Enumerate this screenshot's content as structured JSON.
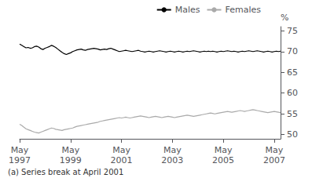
{
  "chart_data": {
    "type": "line",
    "ylabel": "%",
    "footnote": "(a) Series break at April 2001",
    "categories": [
      "May\n1997",
      null,
      null,
      null,
      null,
      null,
      null,
      null,
      null,
      null,
      null,
      null,
      null,
      null,
      null,
      null,
      null,
      null,
      null,
      null,
      null,
      null,
      null,
      null,
      "May\n1999",
      null,
      null,
      null,
      null,
      null,
      null,
      null,
      null,
      null,
      null,
      null,
      null,
      null,
      null,
      null,
      null,
      null,
      null,
      null,
      null,
      null,
      null,
      null,
      "May\n2001",
      null,
      null,
      null,
      null,
      null,
      null,
      null,
      null,
      null,
      null,
      null,
      null,
      null,
      null,
      null,
      null,
      null,
      null,
      null,
      null,
      null,
      null,
      null,
      "May\n2003",
      null,
      null,
      null,
      null,
      null,
      null,
      null,
      null,
      null,
      null,
      null,
      null,
      null,
      null,
      null,
      null,
      null,
      null,
      null,
      null,
      null,
      null,
      null,
      "May\n2005",
      null,
      null,
      null,
      null,
      null,
      null,
      null,
      null,
      null,
      null,
      null,
      null,
      null,
      null,
      null,
      null,
      null,
      null,
      null,
      null,
      null,
      null,
      null,
      "May\n2007",
      null,
      null,
      null
    ],
    "series": [
      {
        "name": "Males",
        "color": "#000000",
        "values": [
          71.8,
          71.5,
          71.2,
          70.9,
          71.0,
          70.8,
          70.9,
          71.2,
          71.3,
          71.1,
          70.7,
          70.5,
          70.8,
          71.0,
          71.2,
          71.5,
          71.3,
          71.0,
          70.6,
          70.2,
          69.8,
          69.5,
          69.3,
          69.5,
          69.7,
          70.0,
          70.2,
          70.4,
          70.5,
          70.6,
          70.4,
          70.3,
          70.5,
          70.6,
          70.7,
          70.8,
          70.7,
          70.6,
          70.4,
          70.5,
          70.6,
          70.5,
          70.7,
          70.8,
          70.6,
          70.4,
          70.2,
          70.0,
          70.1,
          70.2,
          70.3,
          70.2,
          70.1,
          70.0,
          70.1,
          70.2,
          70.3,
          70.1,
          70.0,
          69.9,
          70.0,
          70.1,
          70.0,
          69.9,
          70.0,
          70.1,
          70.2,
          70.1,
          70.0,
          69.9,
          70.0,
          70.1,
          70.0,
          69.9,
          70.0,
          70.1,
          70.0,
          69.9,
          70.0,
          70.1,
          70.0,
          70.1,
          70.2,
          70.1,
          70.0,
          69.9,
          70.0,
          70.1,
          70.0,
          70.1,
          70.0,
          70.1,
          70.0,
          69.9,
          70.0,
          70.1,
          70.0,
          70.1,
          70.2,
          70.1,
          70.0,
          70.1,
          70.0,
          69.9,
          70.0,
          70.1,
          70.0,
          70.1,
          70.2,
          70.1,
          70.0,
          70.1,
          70.2,
          70.1,
          70.0,
          69.9,
          70.0,
          70.1,
          70.0,
          69.9,
          70.0,
          70.1,
          70.0,
          70.1
        ]
      },
      {
        "name": "Females",
        "color": "#aaaaaa",
        "values": [
          52.5,
          52.2,
          51.8,
          51.4,
          51.2,
          51.0,
          50.8,
          50.6,
          50.5,
          50.4,
          50.6,
          50.8,
          51.0,
          51.2,
          51.4,
          51.6,
          51.5,
          51.3,
          51.2,
          51.1,
          51.0,
          51.2,
          51.3,
          51.4,
          51.5,
          51.6,
          51.8,
          52.0,
          52.1,
          52.2,
          52.3,
          52.4,
          52.5,
          52.6,
          52.7,
          52.8,
          52.9,
          53.0,
          53.2,
          53.3,
          53.4,
          53.5,
          53.6,
          53.7,
          53.8,
          53.9,
          54.0,
          54.1,
          54.0,
          54.1,
          54.2,
          54.1,
          54.0,
          54.1,
          54.2,
          54.3,
          54.4,
          54.5,
          54.4,
          54.3,
          54.2,
          54.1,
          54.2,
          54.3,
          54.4,
          54.3,
          54.2,
          54.1,
          54.2,
          54.3,
          54.4,
          54.3,
          54.2,
          54.1,
          54.2,
          54.3,
          54.4,
          54.5,
          54.6,
          54.7,
          54.6,
          54.5,
          54.4,
          54.5,
          54.6,
          54.7,
          54.8,
          54.9,
          55.0,
          55.1,
          55.2,
          55.1,
          55.0,
          55.1,
          55.2,
          55.3,
          55.4,
          55.5,
          55.6,
          55.5,
          55.4,
          55.5,
          55.6,
          55.7,
          55.8,
          55.7,
          55.6,
          55.7,
          55.8,
          55.9,
          56.0,
          55.9,
          55.8,
          55.7,
          55.6,
          55.5,
          55.4,
          55.3,
          55.4,
          55.5,
          55.6,
          55.5,
          55.4,
          55.3
        ]
      }
    ],
    "ylim": [
      49,
      76
    ],
    "yticks": [
      50,
      55,
      60,
      65,
      70,
      75
    ],
    "grid": false,
    "legend": "top-right"
  }
}
